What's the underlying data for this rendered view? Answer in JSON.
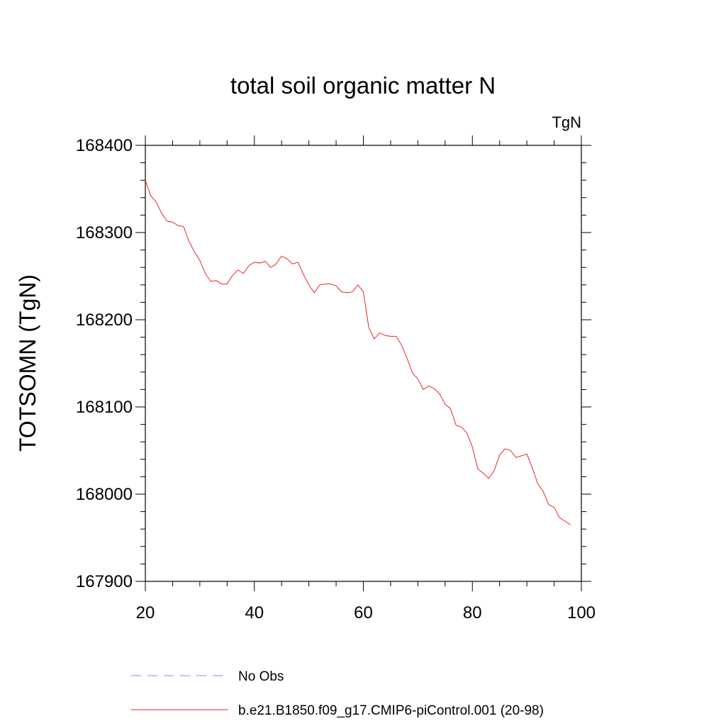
{
  "chart_data": {
    "type": "line",
    "title": "total soil organic matter N",
    "units": "TgN",
    "xlabel": "",
    "ylabel": "TOTSOMN  (TgN)",
    "xlim": [
      20,
      100
    ],
    "ylim": [
      167900,
      168400
    ],
    "xticks": [
      20,
      40,
      60,
      80,
      100
    ],
    "yticks": [
      167900,
      168000,
      168100,
      168200,
      168300,
      168400
    ],
    "xtick_labels": [
      "20",
      "40",
      "60",
      "80",
      "100"
    ],
    "ytick_labels": [
      "167900",
      "168000",
      "168100",
      "168200",
      "168300",
      "168400"
    ],
    "grid": false,
    "legend_position": "bottom",
    "series": [
      {
        "name": "No Obs",
        "color": "#8a8ad8",
        "style": "dashed",
        "x": [],
        "y": []
      },
      {
        "name": "b.e21.B1850.f09_g17.CMIP6-piControl.001 (20-98)",
        "color": "#e8262a",
        "style": "solid",
        "x": [
          20,
          21,
          22,
          23,
          24,
          25,
          26,
          27,
          28,
          29,
          30,
          31,
          32,
          33,
          34,
          35,
          36,
          37,
          38,
          39,
          40,
          41,
          42,
          43,
          44,
          45,
          46,
          47,
          48,
          49,
          50,
          51,
          52,
          53,
          54,
          55,
          56,
          57,
          58,
          59,
          60,
          61,
          62,
          63,
          64,
          65,
          66,
          67,
          68,
          69,
          70,
          71,
          72,
          73,
          74,
          75,
          76,
          77,
          78,
          79,
          80,
          81,
          82,
          83,
          84,
          85,
          86,
          87,
          88,
          89,
          90,
          91,
          92,
          93,
          94,
          95,
          96,
          97,
          98
        ],
        "y": [
          168360,
          168342,
          168335,
          168322,
          168313,
          168312,
          168308,
          168307,
          168290,
          168278,
          168268,
          168253,
          168244,
          168245,
          168241,
          168241,
          168251,
          168257,
          168253,
          168262,
          168266,
          168265,
          168267,
          168260,
          168264,
          168273,
          168270,
          168264,
          168266,
          168252,
          168240,
          168231,
          168240,
          168241,
          168241,
          168239,
          168232,
          168231,
          168232,
          168240,
          168232,
          168191,
          168178,
          168185,
          168182,
          168181,
          168181,
          168171,
          168156,
          168139,
          168132,
          168120,
          168124,
          168121,
          168115,
          168103,
          168098,
          168079,
          168077,
          168070,
          168054,
          168029,
          168024,
          168018,
          168027,
          168045,
          168052,
          168050,
          168042,
          168044,
          168046,
          168030,
          168012,
          168003,
          167988,
          167985,
          167973,
          167969,
          167965
        ]
      }
    ]
  }
}
